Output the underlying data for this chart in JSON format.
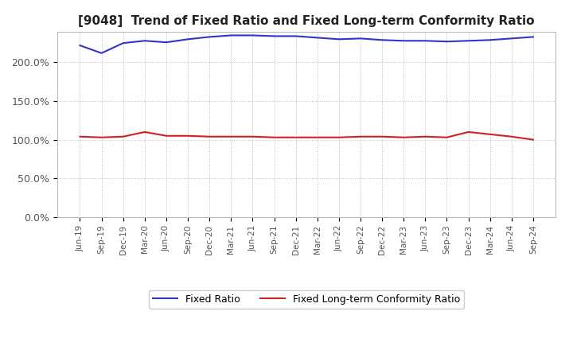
{
  "title": "[9048]  Trend of Fixed Ratio and Fixed Long-term Conformity Ratio",
  "x_labels": [
    "Jun-19",
    "Sep-19",
    "Dec-19",
    "Mar-20",
    "Jun-20",
    "Sep-20",
    "Dec-20",
    "Mar-21",
    "Jun-21",
    "Sep-21",
    "Dec-21",
    "Mar-22",
    "Jun-22",
    "Sep-22",
    "Dec-22",
    "Mar-23",
    "Jun-23",
    "Sep-23",
    "Dec-23",
    "Mar-24",
    "Jun-24",
    "Sep-24"
  ],
  "fixed_ratio": [
    222,
    212,
    225,
    228,
    226,
    230,
    233,
    235,
    235,
    234,
    234,
    232,
    230,
    231,
    229,
    228,
    228,
    227,
    228,
    229,
    231,
    233
  ],
  "fixed_lt_ratio": [
    104,
    103,
    104,
    110,
    105,
    105,
    104,
    104,
    104,
    103,
    103,
    103,
    103,
    104,
    104,
    103,
    104,
    103,
    110,
    107,
    104,
    100
  ],
  "fixed_ratio_color": "#3333cc",
  "fixed_lt_ratio_color": "#cc2222",
  "ylim": [
    0,
    240
  ],
  "yticks": [
    0,
    50,
    100,
    150,
    200
  ],
  "ytick_labels": [
    "0.0%",
    "50.0%",
    "100.0%",
    "150.0%",
    "200.0%"
  ],
  "background_color": "#ffffff",
  "grid_color": "#aaaaaa",
  "legend_fixed_ratio": "Fixed Ratio",
  "legend_fixed_lt_ratio": "Fixed Long-term Conformity Ratio"
}
